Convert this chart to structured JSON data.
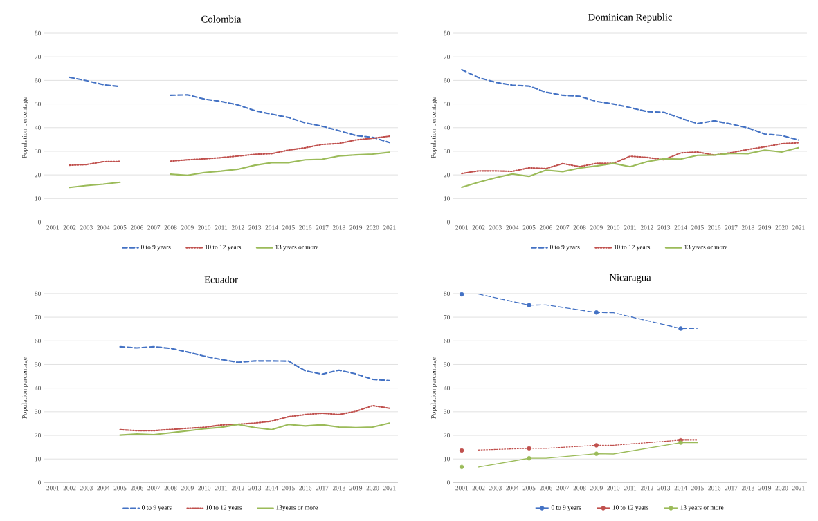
{
  "chart_data": [
    {
      "type": "line",
      "title": "Colombia",
      "ylabel": "Population percentage",
      "x": [
        2002,
        2003,
        2004,
        2005,
        2006,
        2007,
        2008,
        2009,
        2010,
        2011,
        2012,
        2013,
        2014,
        2015,
        2016,
        2017,
        2018,
        2019,
        2020,
        2021
      ],
      "xlim": [
        2000.5,
        2021.5
      ],
      "xticks": [
        2001,
        2002,
        2003,
        2004,
        2005,
        2006,
        2007,
        2008,
        2009,
        2010,
        2011,
        2012,
        2013,
        2014,
        2015,
        2016,
        2017,
        2018,
        2019,
        2020,
        2021
      ],
      "ylim": [
        0,
        80
      ],
      "yticks": [
        0,
        10,
        20,
        30,
        40,
        50,
        60,
        70,
        80
      ],
      "grid": "y",
      "legend": "bottom",
      "series": [
        {
          "name": "0 to 9 years",
          "color": "#4472c4",
          "line_style": "dashed",
          "values": [
            61.3,
            59.9,
            58.2,
            57.4,
            null,
            null,
            53.7,
            53.9,
            52.1,
            51.1,
            49.6,
            47.2,
            45.7,
            44.3,
            42.0,
            40.6,
            38.7,
            36.7,
            35.9,
            33.7
          ]
        },
        {
          "name": "10 to 12 years",
          "color": "#c0504d",
          "line_style": "dotted",
          "values": [
            24.1,
            24.4,
            25.6,
            25.7,
            null,
            null,
            25.8,
            26.4,
            26.8,
            27.3,
            28.0,
            28.7,
            29.0,
            30.5,
            31.5,
            32.9,
            33.3,
            34.8,
            35.5,
            36.4
          ]
        },
        {
          "name": "13 years or more",
          "color": "#9bbb59",
          "line_style": "solid",
          "values": [
            14.7,
            15.5,
            16.1,
            16.9,
            null,
            null,
            20.3,
            19.8,
            21.0,
            21.6,
            22.4,
            24.1,
            25.2,
            25.2,
            26.4,
            26.6,
            28.0,
            28.5,
            28.8,
            29.6
          ]
        }
      ]
    },
    {
      "type": "line",
      "title": "Dominican Republic",
      "ylabel": "Population percentage",
      "x": [
        2001,
        2002,
        2003,
        2004,
        2005,
        2006,
        2007,
        2008,
        2009,
        2010,
        2011,
        2012,
        2013,
        2014,
        2015,
        2016,
        2017,
        2018,
        2019,
        2020,
        2021
      ],
      "xlim": [
        2000.5,
        2021.5
      ],
      "xticks": [
        2001,
        2002,
        2003,
        2004,
        2005,
        2006,
        2007,
        2008,
        2009,
        2010,
        2011,
        2012,
        2013,
        2014,
        2015,
        2016,
        2017,
        2018,
        2019,
        2020,
        2021
      ],
      "ylim": [
        0,
        80
      ],
      "yticks": [
        0,
        10,
        20,
        30,
        40,
        50,
        60,
        70,
        80
      ],
      "grid": "y",
      "legend": "bottom",
      "series": [
        {
          "name": "0 to 9 years",
          "color": "#4472c4",
          "line_style": "dashed",
          "values": [
            64.5,
            61.2,
            59.2,
            58.0,
            57.6,
            55.0,
            53.7,
            53.3,
            51.1,
            50.0,
            48.5,
            46.8,
            46.5,
            44.0,
            41.7,
            42.9,
            41.5,
            39.9,
            37.3,
            36.7,
            34.8
          ]
        },
        {
          "name": "10 to 12 years",
          "color": "#c0504d",
          "line_style": "dotted",
          "values": [
            20.6,
            21.7,
            21.7,
            21.5,
            23.0,
            22.7,
            24.8,
            23.5,
            24.9,
            24.9,
            27.9,
            27.4,
            26.4,
            29.3,
            29.7,
            28.4,
            29.4,
            30.8,
            31.9,
            33.2,
            33.6
          ]
        },
        {
          "name": "13 years or more",
          "color": "#9bbb59",
          "line_style": "solid",
          "values": [
            14.8,
            16.9,
            18.8,
            20.4,
            19.4,
            22.0,
            21.4,
            22.9,
            23.8,
            24.9,
            23.5,
            25.6,
            26.8,
            26.7,
            28.3,
            28.4,
            29.1,
            29.0,
            30.5,
            29.7,
            31.5
          ]
        }
      ]
    },
    {
      "type": "line",
      "title": "Ecuador",
      "ylabel": "Population percentage",
      "x": [
        2005,
        2006,
        2007,
        2008,
        2009,
        2010,
        2011,
        2012,
        2013,
        2014,
        2015,
        2016,
        2017,
        2018,
        2019,
        2020,
        2021
      ],
      "xlim": [
        2000.5,
        2021.5
      ],
      "xticks": [
        2001,
        2002,
        2003,
        2004,
        2005,
        2006,
        2007,
        2008,
        2009,
        2010,
        2011,
        2012,
        2013,
        2014,
        2015,
        2016,
        2017,
        2018,
        2019,
        2020,
        2021
      ],
      "ylim": [
        0,
        80
      ],
      "yticks": [
        0,
        10,
        20,
        30,
        40,
        50,
        60,
        70,
        80
      ],
      "grid": "y",
      "legend": "bottom",
      "series": [
        {
          "name": "0 to 9 years",
          "color": "#4472c4",
          "line_style": "dashed",
          "values": [
            57.5,
            57.0,
            57.5,
            56.8,
            55.3,
            53.5,
            52.1,
            50.9,
            51.5,
            51.5,
            51.4,
            47.3,
            45.9,
            47.6,
            46.0,
            43.7,
            43.2
          ]
        },
        {
          "name": "10 to 12 years",
          "color": "#c0504d",
          "line_style": "dotted",
          "values": [
            22.4,
            22.0,
            22.0,
            22.5,
            23.0,
            23.4,
            24.4,
            24.7,
            25.2,
            26.0,
            27.9,
            28.8,
            29.4,
            28.8,
            30.2,
            32.6,
            31.5
          ]
        },
        {
          "name": "13years or more",
          "color": "#9bbb59",
          "line_style": "solid",
          "values": [
            20.1,
            20.6,
            20.3,
            21.1,
            21.9,
            22.8,
            23.4,
            24.6,
            23.3,
            22.4,
            24.6,
            24.0,
            24.5,
            23.5,
            23.3,
            23.5,
            25.2
          ]
        }
      ]
    },
    {
      "type": "line",
      "title": "Nicaragua",
      "ylabel": "Population percentage",
      "xlim": [
        2000.5,
        2021.5
      ],
      "xticks": [
        2001,
        2002,
        2003,
        2004,
        2005,
        2006,
        2007,
        2008,
        2009,
        2010,
        2011,
        2012,
        2013,
        2014,
        2015,
        2016,
        2017,
        2018,
        2019,
        2020,
        2021
      ],
      "ylim": [
        0,
        80
      ],
      "yticks": [
        0,
        10,
        20,
        30,
        40,
        50,
        60,
        70,
        80
      ],
      "grid": "y",
      "legend": "bottom",
      "series": [
        {
          "type": "line",
          "color": "#4472c4",
          "line_style": "dashed",
          "x": [
            2002,
            2005,
            2006,
            2009,
            2010,
            2014,
            2015
          ],
          "values": [
            79.8,
            75.1,
            75.2,
            72.0,
            71.9,
            65.2,
            65.3
          ]
        },
        {
          "type": "line",
          "color": "#c0504d",
          "line_style": "dotted",
          "x": [
            2002,
            2005,
            2006,
            2009,
            2010,
            2014,
            2015
          ],
          "values": [
            13.8,
            14.5,
            14.5,
            15.8,
            15.8,
            18.0,
            18.0
          ]
        },
        {
          "type": "line",
          "color": "#9bbb59",
          "line_style": "solid",
          "x": [
            2002,
            2005,
            2006,
            2009,
            2010,
            2014,
            2015
          ],
          "values": [
            6.6,
            10.3,
            10.3,
            12.2,
            12.1,
            16.9,
            16.9
          ]
        },
        {
          "type": "scatter",
          "name": "0 to 9 years",
          "color": "#4472c4",
          "marker": "circle",
          "x": [
            2001,
            2005,
            2009,
            2014
          ],
          "values": [
            79.7,
            75.1,
            72.0,
            65.2
          ]
        },
        {
          "type": "scatter",
          "name": "10 to 12 years",
          "color": "#c0504d",
          "marker": "circle",
          "x": [
            2001,
            2005,
            2009,
            2014
          ],
          "values": [
            13.6,
            14.5,
            15.8,
            17.9
          ]
        },
        {
          "type": "scatter",
          "name": "13 years or more",
          "color": "#9bbb59",
          "marker": "circle",
          "x": [
            2001,
            2005,
            2009,
            2014
          ],
          "values": [
            6.6,
            10.3,
            12.2,
            16.9
          ]
        }
      ]
    }
  ]
}
